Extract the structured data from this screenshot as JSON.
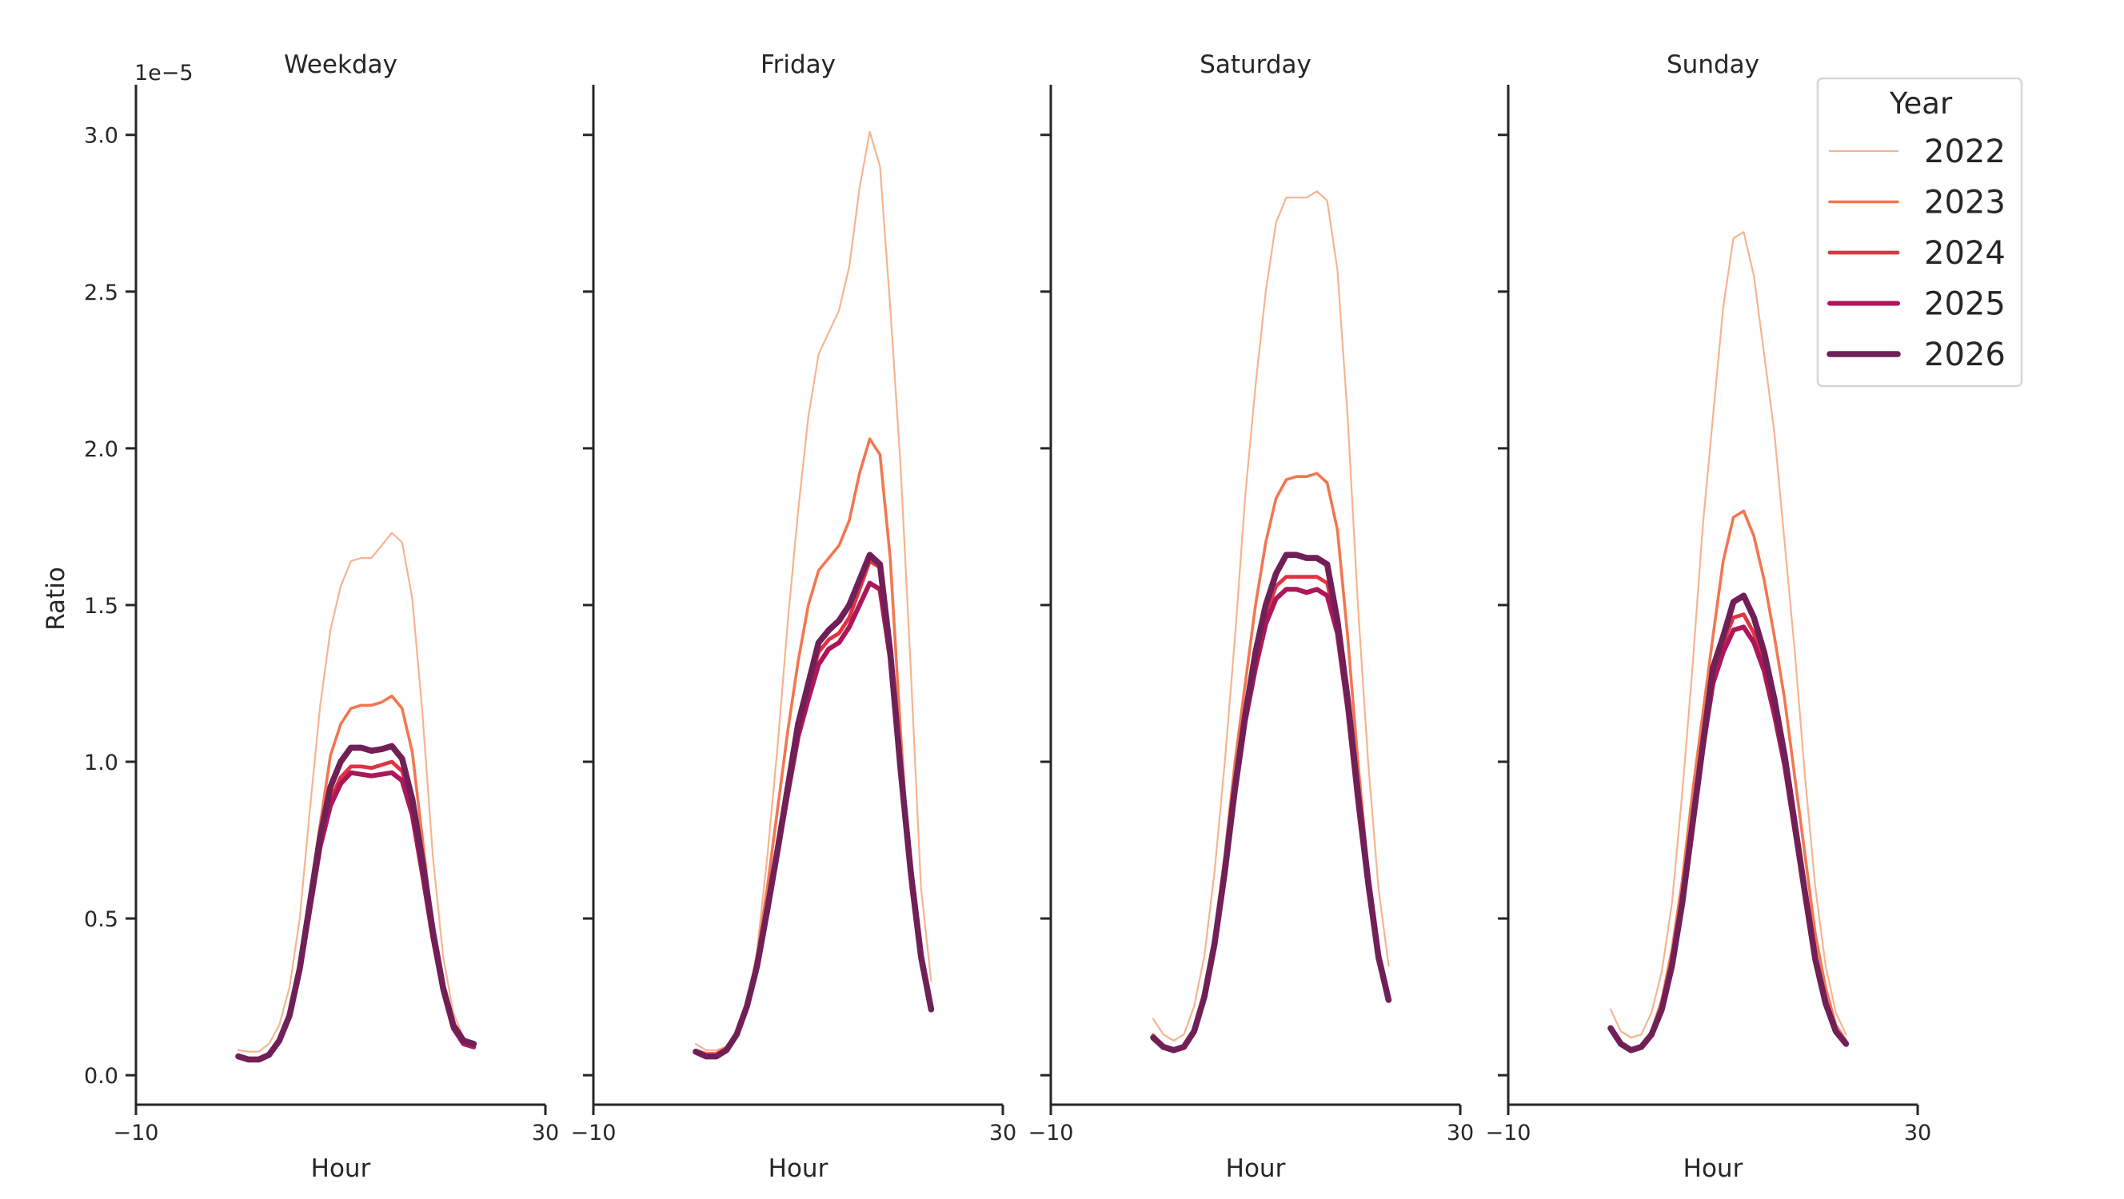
{
  "chart_data": {
    "type": "line",
    "ylabel": "Ratio",
    "y_offset_label": "1e−5",
    "y_scale_multiplier": 1e-05,
    "ylim": [
      -0.094,
      3.16
    ],
    "yticks": [
      0.0,
      0.5,
      1.0,
      1.5,
      2.0,
      2.5,
      3.0
    ],
    "ytick_labels": [
      "0.0",
      "0.5",
      "1.0",
      "1.5",
      "2.0",
      "2.5",
      "3.0"
    ],
    "xlim": [
      -10,
      30
    ],
    "xticks": [
      -10,
      30
    ],
    "xtick_labels": [
      "−10",
      "30"
    ],
    "xlabel": "Hour",
    "grid": false,
    "legend": {
      "title": "Year",
      "placement": "top-right",
      "entries": [
        "2022",
        "2023",
        "2024",
        "2025",
        "2026"
      ]
    },
    "series_styles": [
      {
        "name": "2022",
        "color": "#f6b48f"
      },
      {
        "name": "2023",
        "color": "#f37651"
      },
      {
        "name": "2024",
        "color": "#e13342"
      },
      {
        "name": "2025",
        "color": "#ad1759"
      },
      {
        "name": "2026",
        "color": "#701f57"
      }
    ],
    "x": [
      0,
      1,
      2,
      3,
      4,
      5,
      6,
      7,
      8,
      9,
      10,
      11,
      12,
      13,
      14,
      15,
      16,
      17,
      18,
      19,
      20,
      21,
      22,
      23
    ],
    "panels": [
      {
        "title": "Weekday",
        "series": [
          {
            "name": "2022",
            "values": [
              0.08,
              0.075,
              0.075,
              0.1,
              0.16,
              0.28,
              0.5,
              0.85,
              1.18,
              1.42,
              1.56,
              1.64,
              1.65,
              1.65,
              1.69,
              1.73,
              1.7,
              1.52,
              1.15,
              0.7,
              0.38,
              0.2,
              0.12,
              0.1
            ]
          },
          {
            "name": "2023",
            "values": [
              0.065,
              0.055,
              0.055,
              0.07,
              0.11,
              0.2,
              0.36,
              0.58,
              0.8,
              1.02,
              1.12,
              1.17,
              1.18,
              1.18,
              1.19,
              1.21,
              1.17,
              1.03,
              0.75,
              0.47,
              0.28,
              0.16,
              0.11,
              0.1
            ]
          },
          {
            "name": "2024",
            "values": [
              0.06,
              0.05,
              0.05,
              0.065,
              0.11,
              0.19,
              0.34,
              0.55,
              0.75,
              0.88,
              0.95,
              0.985,
              0.985,
              0.98,
              0.99,
              1.0,
              0.97,
              0.86,
              0.66,
              0.45,
              0.28,
              0.16,
              0.11,
              0.1
            ]
          },
          {
            "name": "2025",
            "values": [
              0.06,
              0.05,
              0.05,
              0.065,
              0.11,
              0.19,
              0.33,
              0.53,
              0.73,
              0.86,
              0.93,
              0.965,
              0.96,
              0.955,
              0.96,
              0.965,
              0.94,
              0.83,
              0.64,
              0.44,
              0.27,
              0.15,
              0.1,
              0.09
            ]
          },
          {
            "name": "2026",
            "values": [
              0.06,
              0.05,
              0.05,
              0.065,
              0.11,
              0.19,
              0.34,
              0.55,
              0.76,
              0.92,
              1.0,
              1.045,
              1.045,
              1.035,
              1.04,
              1.05,
              1.01,
              0.88,
              0.68,
              0.46,
              0.28,
              0.16,
              0.11,
              0.1
            ]
          }
        ]
      },
      {
        "title": "Friday",
        "series": [
          {
            "name": "2022",
            "values": [
              0.1,
              0.08,
              0.08,
              0.09,
              0.13,
              0.22,
              0.4,
              0.7,
              1.05,
              1.45,
              1.8,
              2.1,
              2.3,
              2.37,
              2.44,
              2.58,
              2.83,
              3.01,
              2.9,
              2.45,
              1.95,
              1.3,
              0.6,
              0.3
            ]
          },
          {
            "name": "2023",
            "values": [
              0.08,
              0.07,
              0.07,
              0.09,
              0.13,
              0.22,
              0.38,
              0.6,
              0.85,
              1.1,
              1.32,
              1.5,
              1.61,
              1.65,
              1.69,
              1.77,
              1.92,
              2.03,
              1.98,
              1.65,
              1.1,
              0.6,
              0.35,
              0.22
            ]
          },
          {
            "name": "2024",
            "values": [
              0.075,
              0.06,
              0.06,
              0.08,
              0.13,
              0.22,
              0.35,
              0.53,
              0.72,
              0.92,
              1.12,
              1.24,
              1.35,
              1.39,
              1.41,
              1.46,
              1.55,
              1.64,
              1.62,
              1.35,
              0.98,
              0.65,
              0.38,
              0.21
            ]
          },
          {
            "name": "2025",
            "values": [
              0.075,
              0.06,
              0.06,
              0.08,
              0.13,
              0.22,
              0.35,
              0.52,
              0.71,
              0.9,
              1.08,
              1.2,
              1.31,
              1.36,
              1.38,
              1.43,
              1.5,
              1.57,
              1.55,
              1.33,
              0.97,
              0.64,
              0.38,
              0.21
            ]
          },
          {
            "name": "2026",
            "values": [
              0.075,
              0.06,
              0.06,
              0.08,
              0.13,
              0.22,
              0.35,
              0.53,
              0.72,
              0.92,
              1.12,
              1.25,
              1.38,
              1.42,
              1.45,
              1.5,
              1.58,
              1.66,
              1.63,
              1.35,
              0.98,
              0.65,
              0.38,
              0.21
            ]
          }
        ]
      },
      {
        "title": "Saturday",
        "series": [
          {
            "name": "2022",
            "values": [
              0.18,
              0.13,
              0.11,
              0.13,
              0.22,
              0.38,
              0.65,
              1.0,
              1.4,
              1.85,
              2.2,
              2.5,
              2.72,
              2.8,
              2.8,
              2.8,
              2.82,
              2.79,
              2.57,
              2.1,
              1.5,
              1.0,
              0.6,
              0.35
            ]
          },
          {
            "name": "2023",
            "values": [
              0.13,
              0.09,
              0.08,
              0.09,
              0.15,
              0.26,
              0.45,
              0.7,
              1.0,
              1.25,
              1.5,
              1.7,
              1.84,
              1.9,
              1.91,
              1.91,
              1.92,
              1.89,
              1.74,
              1.4,
              1.0,
              0.65,
              0.4,
              0.26
            ]
          },
          {
            "name": "2024",
            "values": [
              0.12,
              0.09,
              0.08,
              0.09,
              0.14,
              0.25,
              0.42,
              0.65,
              0.92,
              1.15,
              1.33,
              1.47,
              1.56,
              1.59,
              1.59,
              1.59,
              1.59,
              1.57,
              1.43,
              1.18,
              0.88,
              0.61,
              0.37,
              0.24
            ]
          },
          {
            "name": "2025",
            "values": [
              0.12,
              0.09,
              0.08,
              0.09,
              0.14,
              0.25,
              0.42,
              0.64,
              0.9,
              1.13,
              1.3,
              1.44,
              1.52,
              1.55,
              1.55,
              1.54,
              1.55,
              1.53,
              1.41,
              1.17,
              0.87,
              0.6,
              0.37,
              0.24
            ]
          },
          {
            "name": "2026",
            "values": [
              0.12,
              0.09,
              0.08,
              0.09,
              0.14,
              0.25,
              0.42,
              0.65,
              0.92,
              1.15,
              1.35,
              1.5,
              1.6,
              1.66,
              1.66,
              1.65,
              1.65,
              1.63,
              1.45,
              1.2,
              0.9,
              0.62,
              0.38,
              0.24
            ]
          }
        ]
      },
      {
        "title": "Sunday",
        "series": [
          {
            "name": "2022",
            "values": [
              0.21,
              0.14,
              0.12,
              0.13,
              0.2,
              0.33,
              0.55,
              0.9,
              1.3,
              1.75,
              2.1,
              2.45,
              2.67,
              2.69,
              2.55,
              2.3,
              2.05,
              1.7,
              1.35,
              0.95,
              0.6,
              0.35,
              0.2,
              0.13
            ]
          },
          {
            "name": "2023",
            "values": [
              0.15,
              0.1,
              0.08,
              0.09,
              0.14,
              0.24,
              0.4,
              0.62,
              0.9,
              1.15,
              1.4,
              1.64,
              1.78,
              1.8,
              1.72,
              1.58,
              1.4,
              1.2,
              0.95,
              0.7,
              0.45,
              0.28,
              0.16,
              0.11
            ]
          },
          {
            "name": "2024",
            "values": [
              0.15,
              0.1,
              0.08,
              0.09,
              0.13,
              0.21,
              0.35,
              0.55,
              0.8,
              1.05,
              1.27,
              1.38,
              1.46,
              1.47,
              1.41,
              1.31,
              1.17,
              1.0,
              0.79,
              0.57,
              0.37,
              0.23,
              0.14,
              0.1
            ]
          },
          {
            "name": "2025",
            "values": [
              0.15,
              0.1,
              0.08,
              0.09,
              0.13,
              0.21,
              0.35,
              0.55,
              0.79,
              1.04,
              1.25,
              1.35,
              1.42,
              1.43,
              1.38,
              1.29,
              1.15,
              0.99,
              0.78,
              0.57,
              0.37,
              0.23,
              0.14,
              0.1
            ]
          },
          {
            "name": "2026",
            "values": [
              0.15,
              0.1,
              0.08,
              0.09,
              0.13,
              0.21,
              0.35,
              0.55,
              0.8,
              1.05,
              1.3,
              1.4,
              1.51,
              1.53,
              1.46,
              1.35,
              1.2,
              1.02,
              0.8,
              0.58,
              0.37,
              0.23,
              0.14,
              0.1
            ]
          }
        ]
      }
    ]
  }
}
